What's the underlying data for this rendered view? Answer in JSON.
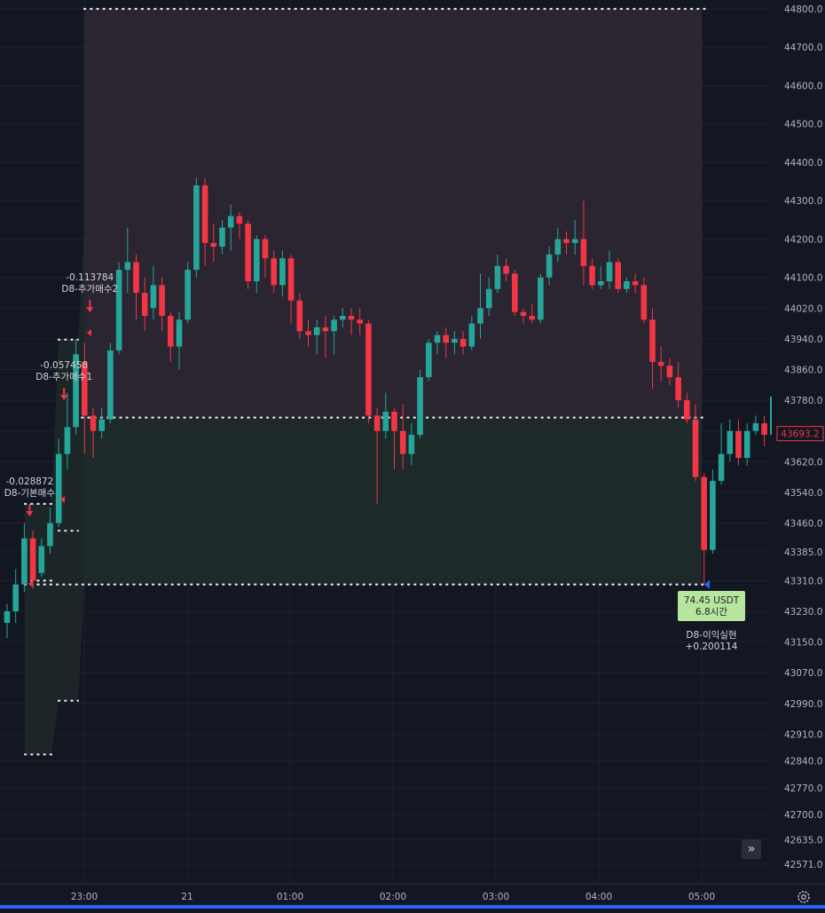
{
  "chart_data": {
    "type": "candlestick",
    "symbol_unit": "USDT",
    "ylim": [
      42540,
      44830
    ],
    "y_ticks": [
      "44800.0",
      "44700.0",
      "44600.0",
      "44500.0",
      "44400.0",
      "44300.0",
      "44200.0",
      "44100.0",
      "44020.0",
      "43940.0",
      "43860.0",
      "43780.0",
      "43700.0",
      "43620.0",
      "43540.0",
      "43460.0",
      "43385.0",
      "43310.0",
      "43230.0",
      "43150.0",
      "43070.0",
      "42990.0",
      "42910.0",
      "42840.0",
      "42770.0",
      "42700.0",
      "42635.0",
      "42571.0"
    ],
    "x_ticks": [
      "23:00",
      "21",
      "01:00",
      "02:00",
      "03:00",
      "04:00",
      "05:00"
    ],
    "current_price": "43693.2",
    "current_price_value": 43693.2,
    "candles": [
      [
        43200,
        43230,
        43160,
        43250
      ],
      [
        43230,
        43300,
        43200,
        43340
      ],
      [
        43300,
        43420,
        43280,
        43460
      ],
      [
        43420,
        43310,
        43290,
        43440
      ],
      [
        43330,
        43400,
        43320,
        43420
      ],
      [
        43400,
        43460,
        43380,
        43500
      ],
      [
        43460,
        43640,
        43450,
        43680
      ],
      [
        43640,
        43710,
        43600,
        43800
      ],
      [
        43710,
        43900,
        43690,
        43940
      ],
      [
        43880,
        43740,
        43640,
        43930
      ],
      [
        43740,
        43700,
        43630,
        43760
      ],
      [
        43700,
        43730,
        43680,
        43760
      ],
      [
        43730,
        43910,
        43720,
        43930
      ],
      [
        43910,
        44120,
        43900,
        44140
      ],
      [
        44120,
        44140,
        44060,
        44230
      ],
      [
        44140,
        44060,
        43990,
        44160
      ],
      [
        44060,
        44000,
        43960,
        44100
      ],
      [
        44020,
        44080,
        43990,
        44130
      ],
      [
        44080,
        44000,
        43960,
        44100
      ],
      [
        44000,
        43920,
        43880,
        44010
      ],
      [
        43920,
        43990,
        43860,
        44010
      ],
      [
        43990,
        44120,
        43980,
        44140
      ],
      [
        44120,
        44340,
        44100,
        44360
      ],
      [
        44340,
        44190,
        44130,
        44360
      ],
      [
        44190,
        44180,
        44140,
        44240
      ],
      [
        44180,
        44230,
        44160,
        44250
      ],
      [
        44230,
        44260,
        44170,
        44290
      ],
      [
        44260,
        44240,
        44200,
        44270
      ],
      [
        44240,
        44090,
        44070,
        44250
      ],
      [
        44090,
        44200,
        44060,
        44210
      ],
      [
        44200,
        44150,
        44100,
        44210
      ],
      [
        44150,
        44080,
        44060,
        44170
      ],
      [
        44080,
        44150,
        44050,
        44170
      ],
      [
        44150,
        44040,
        43980,
        44160
      ],
      [
        44040,
        43960,
        43940,
        44060
      ],
      [
        43960,
        43950,
        43920,
        43990
      ],
      [
        43950,
        43970,
        43900,
        43990
      ],
      [
        43970,
        43960,
        43890,
        44000
      ],
      [
        43960,
        43990,
        43900,
        44000
      ],
      [
        43990,
        44000,
        43970,
        44020
      ],
      [
        44000,
        43990,
        43950,
        44020
      ],
      [
        43990,
        43980,
        43950,
        44020
      ],
      [
        43980,
        43740,
        43720,
        43990
      ],
      [
        43740,
        43700,
        43510,
        43760
      ],
      [
        43700,
        43750,
        43680,
        43800
      ],
      [
        43750,
        43700,
        43600,
        43760
      ],
      [
        43700,
        43640,
        43600,
        43770
      ],
      [
        43640,
        43690,
        43610,
        43720
      ],
      [
        43690,
        43840,
        43680,
        43860
      ],
      [
        43840,
        43930,
        43830,
        43940
      ],
      [
        43930,
        43950,
        43900,
        43960
      ],
      [
        43950,
        43930,
        43890,
        43970
      ],
      [
        43930,
        43940,
        43900,
        43960
      ],
      [
        43940,
        43920,
        43900,
        43960
      ],
      [
        43920,
        43980,
        43910,
        44000
      ],
      [
        43980,
        44020,
        43940,
        44110
      ],
      [
        44020,
        44070,
        44000,
        44100
      ],
      [
        44070,
        44130,
        44060,
        44160
      ],
      [
        44130,
        44110,
        44090,
        44150
      ],
      [
        44110,
        44010,
        44000,
        44120
      ],
      [
        44010,
        44000,
        43980,
        44020
      ],
      [
        44000,
        43990,
        43980,
        44030
      ],
      [
        43990,
        44100,
        43980,
        44110
      ],
      [
        44100,
        44160,
        44080,
        44180
      ],
      [
        44160,
        44200,
        44140,
        44230
      ],
      [
        44200,
        44190,
        44160,
        44220
      ],
      [
        44190,
        44200,
        44160,
        44250
      ],
      [
        44200,
        44130,
        44080,
        44300
      ],
      [
        44130,
        44080,
        44070,
        44150
      ],
      [
        44080,
        44090,
        44070,
        44130
      ],
      [
        44090,
        44140,
        44070,
        44170
      ],
      [
        44140,
        44070,
        44060,
        44150
      ],
      [
        44070,
        44090,
        44060,
        44100
      ],
      [
        44090,
        44080,
        44060,
        44110
      ],
      [
        44080,
        43990,
        43980,
        44100
      ],
      [
        43990,
        43880,
        43810,
        44020
      ],
      [
        43880,
        43870,
        43830,
        43920
      ],
      [
        43870,
        43840,
        43820,
        43890
      ],
      [
        43840,
        43780,
        43760,
        43880
      ],
      [
        43780,
        43730,
        43720,
        43800
      ],
      [
        43730,
        43580,
        43570,
        43770
      ],
      [
        43580,
        43390,
        43300,
        43590
      ],
      [
        43390,
        43570,
        43380,
        43600
      ],
      [
        43570,
        43640,
        43560,
        43720
      ],
      [
        43640,
        43700,
        43620,
        43730
      ],
      [
        43700,
        43630,
        43610,
        43730
      ],
      [
        43630,
        43700,
        43610,
        43720
      ],
      [
        43700,
        43720,
        43690,
        43740
      ],
      [
        43720,
        43690,
        43660,
        43740
      ],
      [
        43690,
        43790,
        43670,
        43860
      ]
    ],
    "entry_markers": [
      {
        "value": "-0.028872",
        "label": "D8-기본매수"
      },
      {
        "value": "-0.057458",
        "label": "D8-추가매수1"
      },
      {
        "value": "-0.113784",
        "label": "D8-추가매수2"
      }
    ],
    "exit_marker": {
      "value": "+0.200114",
      "label": "D8-이익실현"
    },
    "position": {
      "profit_top": 44800,
      "entry_price": 43735,
      "stop_price": 43300,
      "profit_text_1": "74.45 USDT",
      "profit_text_2": "6.8시간"
    },
    "dotted_levels": [
      {
        "from": 28,
        "to": 58,
        "price": 43310
      },
      {
        "from": 28,
        "to": 58,
        "price": 43510
      },
      {
        "from": 28,
        "to": 58,
        "price": 42857
      },
      {
        "from": 66,
        "to": 88,
        "price": 43440
      },
      {
        "from": 66,
        "to": 88,
        "price": 42997
      },
      {
        "from": 66,
        "to": 88,
        "price": 43938
      }
    ],
    "colors": {
      "up": "#26a69a",
      "down": "#f23645",
      "background": "#131722",
      "grid": "#1e222d",
      "axis_text": "#b2b5be",
      "profit_fill": "#2b2631",
      "loss_fill": "#1f2a2a",
      "price_tag": "#f23645",
      "exit_tag": "#b6e59e"
    }
  },
  "controls": {
    "scroll_to_realtime_icon": "»",
    "settings_icon": "gear-icon"
  }
}
